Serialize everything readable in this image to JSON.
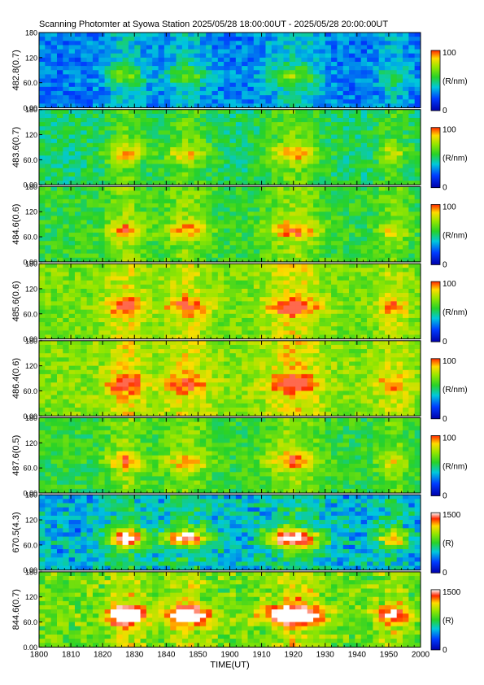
{
  "title": "Scanning Photomter at Syowa Station  2025/05/28 18:00:00UT - 2025/05/28 20:00:00UT",
  "chart_data": {
    "type": "heatmap",
    "title": "Scanning Photomter at Syowa Station  2025/05/28 18:00:00UT - 2025/05/28 20:00:00UT",
    "xlabel": "TIME(UT)",
    "x_tick_labels": [
      "1800",
      "1810",
      "1820",
      "1830",
      "1840",
      "1850",
      "1900",
      "1910",
      "1920",
      "1930",
      "1940",
      "1950",
      "2000"
    ],
    "xlim": [
      "1800",
      "2000"
    ],
    "y_tick_labels": [
      "0.00",
      "60.0",
      "120",
      "180"
    ],
    "ylim": [
      0,
      180
    ],
    "panels": [
      {
        "ylabel": "482.8(0.7)",
        "colorbar_unit": "(R/nm)",
        "colorbar_max": "100",
        "colorbar_min": "0",
        "level": 0.25,
        "saturated": false
      },
      {
        "ylabel": "483.6(0.7)",
        "colorbar_unit": "(R/nm)",
        "colorbar_max": "100",
        "colorbar_min": "0",
        "level": 0.45,
        "saturated": false
      },
      {
        "ylabel": "484.6(0.6)",
        "colorbar_unit": "(R/nm)",
        "colorbar_max": "100",
        "colorbar_min": "0",
        "level": 0.5,
        "saturated": false
      },
      {
        "ylabel": "485.6(0.6)",
        "colorbar_unit": "(R/nm)",
        "colorbar_max": "100",
        "colorbar_min": "0",
        "level": 0.6,
        "saturated": false
      },
      {
        "ylabel": "486.4(0.6)",
        "colorbar_unit": "(R/nm)",
        "colorbar_max": "100",
        "colorbar_min": "0",
        "level": 0.62,
        "saturated": false
      },
      {
        "ylabel": "487.6(0.5)",
        "colorbar_unit": "(R/nm)",
        "colorbar_max": "100",
        "colorbar_min": "0",
        "level": 0.5,
        "saturated": false
      },
      {
        "ylabel": "670.5(4.3)",
        "colorbar_unit": "(R)",
        "colorbar_max": "1500",
        "colorbar_min": "0",
        "level": 0.3,
        "saturated": true
      },
      {
        "ylabel": "844.6(0.7)",
        "colorbar_unit": "(R)",
        "colorbar_max": "1500",
        "colorbar_min": "0",
        "level": 0.55,
        "saturated": true
      }
    ]
  }
}
